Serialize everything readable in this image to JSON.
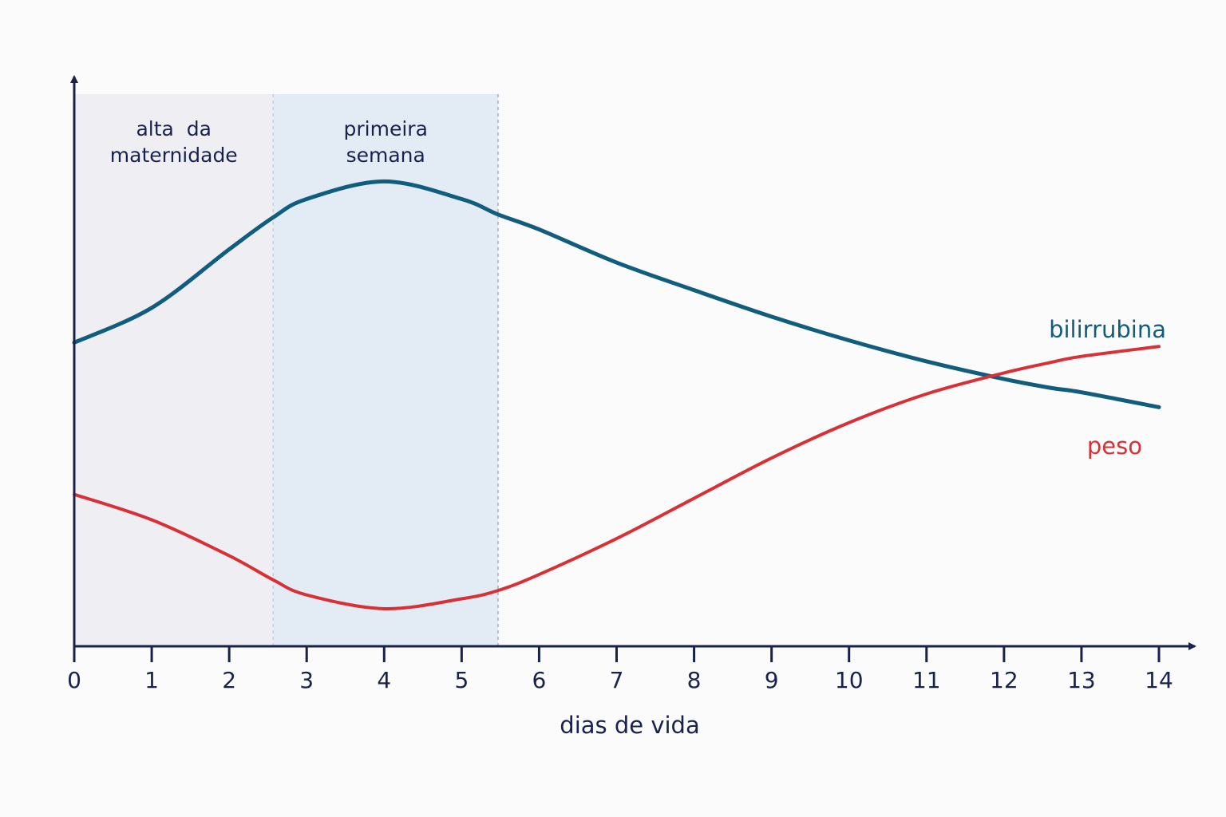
{
  "chart_data": {
    "type": "line",
    "title": "",
    "xlabel": "dias de vida",
    "ylabel": "",
    "x_ticks": [
      0,
      1,
      2,
      3,
      4,
      5,
      6,
      7,
      8,
      9,
      10,
      11,
      12,
      13,
      14
    ],
    "xlim": [
      0,
      14.05
    ],
    "ylim": [
      0,
      100
    ],
    "y_ticks_shown": false,
    "grid": false,
    "legend": "inline labels at right end of lines",
    "regions": [
      {
        "label_lines": [
          "alta  da",
          "maternidade"
        ],
        "x_start": 0,
        "x_end": 2.57,
        "color": "#efeff3"
      },
      {
        "label_lines": [
          "primeira",
          "semana"
        ],
        "x_start": 2.57,
        "x_end": 5.47,
        "color": "#e3ecf5"
      }
    ],
    "series": [
      {
        "name": "bilirrubina",
        "color": "#115d7e",
        "x": [
          0,
          1,
          2,
          2.57,
          3,
          4,
          5,
          5.47,
          6,
          7,
          8,
          9,
          10,
          11,
          12,
          12.6,
          13,
          14
        ],
        "y": [
          55.0,
          61.3,
          71.9,
          77.7,
          81.0,
          84.2,
          81.0,
          78.2,
          75.5,
          69.5,
          64.5,
          59.7,
          55.4,
          51.6,
          48.4,
          46.8,
          46.0,
          43.3
        ]
      },
      {
        "name": "peso",
        "color": "#d93036",
        "x": [
          0,
          1,
          2,
          2.57,
          3,
          4,
          5,
          5.47,
          6,
          7,
          8,
          9,
          10,
          11,
          12,
          12.6,
          13,
          14
        ],
        "y": [
          27.5,
          22.9,
          16.4,
          12.0,
          9.3,
          6.8,
          8.6,
          10.1,
          13.0,
          19.5,
          26.8,
          34.1,
          40.5,
          45.7,
          49.5,
          51.4,
          52.5,
          54.3
        ]
      }
    ]
  },
  "colors": {
    "axis": "#18224d",
    "background": "#fbfbfc"
  }
}
